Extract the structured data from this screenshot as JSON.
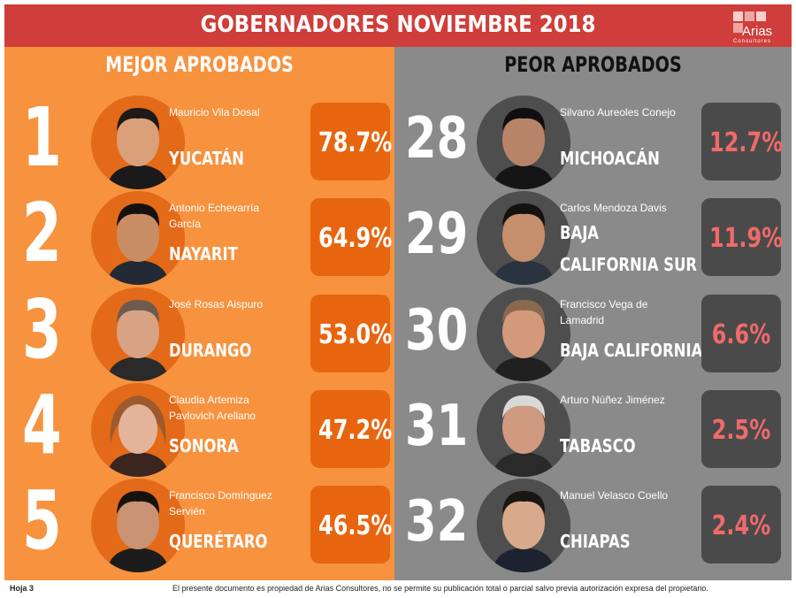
{
  "header": {
    "title": "GOBERNADORES NOVIEMBRE 2018",
    "logo_text": "Arias",
    "logo_sub": "Consultores"
  },
  "best": {
    "title": "MEJOR APROBADOS",
    "items": [
      {
        "rank": "1",
        "name": "Mauricio Vila Dosal",
        "state": "YUCATÁN",
        "pct": "78.7%"
      },
      {
        "rank": "2",
        "name": "Antonio Echevarría García",
        "state": "NAYARIT",
        "pct": "64.9%"
      },
      {
        "rank": "3",
        "name": "José Rosas Aispuro",
        "state": "DURANGO",
        "pct": "53.0%"
      },
      {
        "rank": "4",
        "name": "Claudia Artemiza Pavlovich Arellano",
        "state": "SONORA",
        "pct": "47.2%"
      },
      {
        "rank": "5",
        "name": "Francisco Domínguez Servién",
        "state": "QUERÉTARO",
        "pct": "46.5%"
      }
    ]
  },
  "worst": {
    "title": "PEOR APROBADOS",
    "items": [
      {
        "rank": "28",
        "name": "Silvano Aureoles Conejo",
        "state": "MICHOACÁN",
        "pct": "12.7%"
      },
      {
        "rank": "29",
        "name": "Carlos Mendoza Davis",
        "state_l1": "BAJA",
        "state_l2": "CALIFORNIA SUR",
        "pct": "11.9%"
      },
      {
        "rank": "30",
        "name": "Francisco Vega de Lamadrid",
        "state": "BAJA CALIFORNIA",
        "pct": "6.6%"
      },
      {
        "rank": "31",
        "name": "Arturo Núñez Jiménez",
        "state": "TABASCO",
        "pct": "2.5%"
      },
      {
        "rank": "32",
        "name": "Manuel Velasco Coello",
        "state": "CHIAPAS",
        "pct": "2.4%"
      }
    ]
  },
  "footer": {
    "page": "Hoja 3",
    "disclaimer": "El presente documento es propiedad de Arias Consultores, no se permite su publicación total o parcial salvo previa autorización expresa del propietario."
  },
  "colors": {
    "banner": "#cf3e3a",
    "best_panel": "#f7923f",
    "worst_panel": "#8a8a8a",
    "worst_pct": "#f06a6a"
  }
}
